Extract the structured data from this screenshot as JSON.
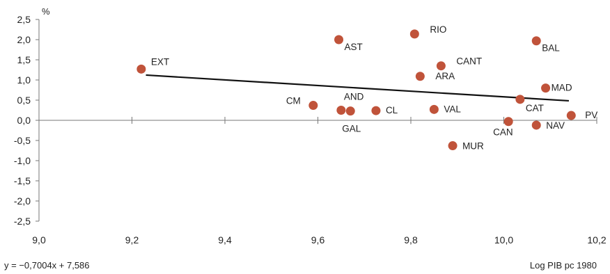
{
  "chart_data": {
    "type": "scatter",
    "ylabel": "%",
    "xlabel": "Log PIB pc 1980",
    "equation": "y = −0,7004x + 7,586",
    "xlim": [
      9.0,
      10.2
    ],
    "ylim": [
      -2.5,
      2.5
    ],
    "x_ticks": [
      "9,0",
      "9,2",
      "9,4",
      "9,6",
      "9,8",
      "10,0",
      "10,2"
    ],
    "y_ticks": [
      "2,5",
      "2,0",
      "1,5",
      "1,0",
      "0,5",
      "0,0",
      "-0,5",
      "-1,0",
      "-1,5",
      "-2,0",
      "-2,5"
    ],
    "grid": false,
    "trendline": {
      "slope": -0.7004,
      "intercept": 7.586,
      "x_range": [
        9.23,
        10.14
      ]
    },
    "point_color": "#c0533a",
    "points": [
      {
        "label": "EXT",
        "x": 9.22,
        "y": 1.27
      },
      {
        "label": "CM",
        "x": 9.59,
        "y": 0.37
      },
      {
        "label": "AST",
        "x": 9.645,
        "y": 2.0
      },
      {
        "label": "AND",
        "x": 9.65,
        "y": 0.25
      },
      {
        "label": "GAL",
        "x": 9.67,
        "y": 0.23
      },
      {
        "label": "CL",
        "x": 9.725,
        "y": 0.24
      },
      {
        "label": "RIO",
        "x": 9.808,
        "y": 2.14
      },
      {
        "label": "ARA",
        "x": 9.82,
        "y": 1.09
      },
      {
        "label": "VAL",
        "x": 9.85,
        "y": 0.27
      },
      {
        "label": "CANT",
        "x": 9.865,
        "y": 1.35
      },
      {
        "label": "MUR",
        "x": 9.89,
        "y": -0.63
      },
      {
        "label": "CAN",
        "x": 10.01,
        "y": -0.03
      },
      {
        "label": "CAT",
        "x": 10.035,
        "y": 0.52
      },
      {
        "label": "BAL",
        "x": 10.07,
        "y": 1.97
      },
      {
        "label": "NAV",
        "x": 10.07,
        "y": -0.12
      },
      {
        "label": "MAD",
        "x": 10.09,
        "y": 0.8
      },
      {
        "label": "PV",
        "x": 10.145,
        "y": 0.12
      }
    ]
  }
}
